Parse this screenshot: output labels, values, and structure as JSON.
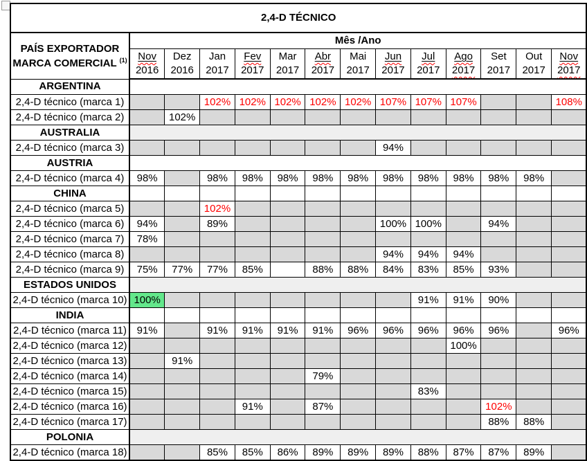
{
  "title": "2,4-D TÉCNICO",
  "header": {
    "label_line1": "PAÍS EXPORTADOR",
    "label_line2": "MARCA COMERCIAL",
    "label_sup": "(1)",
    "mes_ano": "Mês /Ano",
    "columns": [
      {
        "m": "Nov",
        "y": "2016",
        "flag": true
      },
      {
        "m": "Dez",
        "y": "2016"
      },
      {
        "m": "Jan",
        "y": "2017"
      },
      {
        "m": "Fev",
        "y": "2017",
        "flag": true
      },
      {
        "m": "Mar",
        "y": "2017"
      },
      {
        "m": "Abr",
        "y": "2017",
        "flag": true
      },
      {
        "m": "Mai",
        "y": "2017"
      },
      {
        "m": "Jun",
        "y": "2017",
        "flag": true
      },
      {
        "m": "Jul",
        "y": "2017",
        "flag": true
      },
      {
        "m": "Ago",
        "y": "2017",
        "flag": true,
        "yflag": true
      },
      {
        "m": "Set",
        "y": "2017"
      },
      {
        "m": "Out",
        "y": "2017"
      },
      {
        "m": "Nov",
        "y": "2017",
        "flag": true,
        "yflag": true
      }
    ]
  },
  "colors": {
    "empty_cell": "#d9d9d9",
    "highlight_green": "#63e78b",
    "alert_red": "#ff0000",
    "country_band_light": "#efefef",
    "grid": "#000000"
  },
  "rows": [
    {
      "type": "country",
      "label": "ARGENTINA",
      "band": "white"
    },
    {
      "type": "brand",
      "label": "2,4-D técnico (marca 1)",
      "cells": [
        {},
        {},
        {
          "t": "102%",
          "fg": "red"
        },
        {
          "t": "102%",
          "fg": "red"
        },
        {
          "t": "102%",
          "fg": "red"
        },
        {
          "t": "102%",
          "fg": "red"
        },
        {
          "t": "102%",
          "fg": "red"
        },
        {
          "t": "107%",
          "fg": "red"
        },
        {
          "t": "107%",
          "fg": "red"
        },
        {
          "t": "107%",
          "fg": "red"
        },
        {},
        {},
        {
          "t": "108%",
          "fg": "red"
        }
      ]
    },
    {
      "type": "brand",
      "label": "2,4-D técnico (marca 2)",
      "cells": [
        {},
        {
          "t": "102%"
        },
        {},
        {},
        {},
        {},
        {},
        {},
        {},
        {},
        {},
        {},
        {}
      ]
    },
    {
      "type": "country",
      "label": "AUSTRALIA",
      "band": "light"
    },
    {
      "type": "brand",
      "label": "2,4-D técnico (marca 3)",
      "cells": [
        {},
        {},
        {},
        {},
        {},
        {},
        {},
        {
          "t": "94%"
        },
        {},
        {},
        {},
        {},
        {}
      ]
    },
    {
      "type": "country",
      "label": "AUSTRIA",
      "band": "white"
    },
    {
      "type": "brand",
      "label": "2,4-D técnico (marca 4)",
      "cells": [
        {
          "t": "98%"
        },
        {},
        {
          "t": "98%"
        },
        {
          "t": "98%"
        },
        {
          "t": "98%"
        },
        {
          "t": "98%"
        },
        {
          "t": "98%"
        },
        {
          "t": "98%"
        },
        {
          "t": "98%"
        },
        {
          "t": "98%"
        },
        {
          "t": "98%"
        },
        {
          "t": "98%"
        },
        {}
      ]
    },
    {
      "type": "country",
      "label": "CHINA",
      "band": "cells"
    },
    {
      "type": "brand",
      "label": "2,4-D técnico (marca 5)",
      "cells": [
        {},
        {},
        {
          "t": "102%",
          "fg": "red"
        },
        {},
        {},
        {},
        {},
        {},
        {},
        {},
        {},
        {},
        {}
      ]
    },
    {
      "type": "brand",
      "label": "2,4-D técnico (marca 6)",
      "cells": [
        {
          "t": "94%"
        },
        {},
        {
          "t": "89%"
        },
        {},
        {},
        {},
        {},
        {
          "t": "100%"
        },
        {
          "t": "100%"
        },
        {},
        {
          "t": "94%"
        },
        {},
        {}
      ]
    },
    {
      "type": "brand",
      "label": "2,4-D técnico (marca 7)",
      "cells": [
        {
          "t": "78%"
        },
        {},
        {},
        {},
        {},
        {},
        {},
        {},
        {},
        {},
        {},
        {},
        {}
      ]
    },
    {
      "type": "brand",
      "label": "2,4-D técnico (marca 8)",
      "cells": [
        {},
        {},
        {},
        {},
        {},
        {},
        {},
        {
          "t": "94%"
        },
        {
          "t": "94%"
        },
        {
          "t": "94%"
        },
        {},
        {},
        {}
      ]
    },
    {
      "type": "brand",
      "label": "2,4-D técnico (marca 9)",
      "cells": [
        {
          "t": "75%"
        },
        {
          "t": "77%"
        },
        {
          "t": "77%"
        },
        {
          "t": "85%"
        },
        {
          "bg": "white"
        },
        {
          "t": "88%"
        },
        {
          "t": "88%"
        },
        {
          "t": "84%"
        },
        {
          "t": "83%"
        },
        {
          "t": "85%"
        },
        {
          "t": "93%"
        },
        {},
        {}
      ]
    },
    {
      "type": "country",
      "label": "ESTADOS UNIDOS",
      "band": "light"
    },
    {
      "type": "brand",
      "label": "2,4-D técnico (marca 10)",
      "cells": [
        {
          "t": "100%",
          "bg": "green"
        },
        {},
        {},
        {},
        {},
        {},
        {},
        {},
        {
          "t": "91%"
        },
        {
          "t": "91%"
        },
        {
          "t": "90%"
        },
        {},
        {}
      ]
    },
    {
      "type": "country",
      "label": "INDIA",
      "band": "cells"
    },
    {
      "type": "brand",
      "label": "2,4-D técnico (marca 11)",
      "cells": [
        {
          "t": "91%"
        },
        {},
        {
          "t": "91%"
        },
        {
          "t": "91%"
        },
        {
          "t": "91%"
        },
        {
          "t": "91%"
        },
        {
          "t": "96%"
        },
        {
          "t": "96%"
        },
        {
          "t": "96%"
        },
        {
          "t": "96%"
        },
        {
          "t": "96%"
        },
        {},
        {
          "t": "96%"
        }
      ]
    },
    {
      "type": "brand",
      "label": "2,4-D técnico (marca 12)",
      "cells": [
        {},
        {},
        {},
        {},
        {},
        {},
        {},
        {},
        {},
        {
          "t": "100%"
        },
        {},
        {},
        {}
      ]
    },
    {
      "type": "brand",
      "label": "2,4-D técnico (marca 13)",
      "cells": [
        {},
        {
          "t": "91%"
        },
        {},
        {},
        {},
        {},
        {},
        {},
        {},
        {},
        {},
        {},
        {}
      ]
    },
    {
      "type": "brand",
      "label": "2,4-D técnico (marca 14)",
      "cells": [
        {},
        {},
        {},
        {},
        {},
        {
          "t": "79%"
        },
        {},
        {},
        {},
        {},
        {},
        {},
        {}
      ]
    },
    {
      "type": "brand",
      "label": "2,4-D técnico (marca 15)",
      "cells": [
        {},
        {},
        {},
        {},
        {},
        {},
        {},
        {},
        {
          "t": "83%"
        },
        {},
        {},
        {},
        {}
      ]
    },
    {
      "type": "brand",
      "label": "2,4-D técnico (marca 16)",
      "cells": [
        {},
        {},
        {},
        {
          "t": "91%"
        },
        {},
        {
          "t": "87%"
        },
        {},
        {},
        {},
        {},
        {
          "t": "102%",
          "fg": "red"
        },
        {},
        {}
      ]
    },
    {
      "type": "brand",
      "label": "2,4-D técnico (marca 17)",
      "cells": [
        {},
        {},
        {},
        {},
        {},
        {},
        {},
        {},
        {},
        {},
        {
          "t": "88%"
        },
        {
          "t": "88%"
        },
        {}
      ]
    },
    {
      "type": "country",
      "label": "POLONIA",
      "band": "light"
    },
    {
      "type": "brand",
      "label": "2,4-D técnico (marca 18)",
      "cells": [
        {},
        {},
        {
          "t": "85%"
        },
        {
          "t": "85%"
        },
        {
          "t": "86%"
        },
        {
          "t": "89%"
        },
        {
          "t": "89%"
        },
        {
          "t": "89%"
        },
        {
          "t": "88%"
        },
        {
          "t": "87%"
        },
        {
          "t": "87%"
        },
        {
          "t": "89%"
        },
        {}
      ]
    }
  ]
}
